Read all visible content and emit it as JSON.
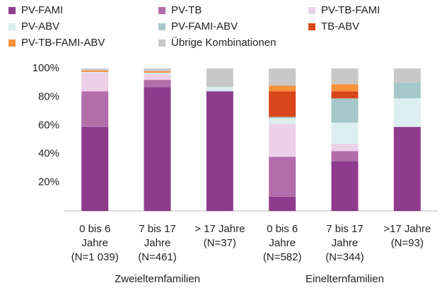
{
  "chart_data": {
    "type": "stacked_bar",
    "categories": [
      [
        "0 bis 6",
        "Jahre",
        "(N=1 039)"
      ],
      [
        "7 bis 17",
        "Jahre",
        "(N=461)"
      ],
      [
        "> 17 Jahre",
        "(N=37)"
      ],
      [
        "0 bis 6",
        "Jahre",
        "(N=582)"
      ],
      [
        "7 bis 17",
        "Jahre",
        "(N=344)"
      ],
      [
        ">17 Jahre",
        "(N=93)"
      ]
    ],
    "groups": [
      "Zweielternfamilien",
      "Einelternfamilien"
    ],
    "series": [
      {
        "name": "PV-FAMI",
        "color": "#8e3b8e",
        "values": [
          59,
          87,
          84,
          10,
          35,
          59
        ]
      },
      {
        "name": "PV-TB",
        "color": "#b26dab",
        "values": [
          25,
          5,
          0,
          28,
          7,
          0
        ]
      },
      {
        "name": "PV-TB-FAMI",
        "color": "#ecd0e8",
        "values": [
          13,
          4,
          0,
          23,
          5,
          0
        ]
      },
      {
        "name": "PV-ABV",
        "color": "#dbeef0",
        "values": [
          0.5,
          1,
          3,
          4,
          15,
          20
        ]
      },
      {
        "name": "PV-FAMI-ABV",
        "color": "#a6c8cb",
        "values": [
          0,
          0,
          0,
          1,
          17,
          11
        ]
      },
      {
        "name": "TB-ABV",
        "color": "#d9461b",
        "values": [
          0,
          0,
          0,
          18,
          5,
          0
        ]
      },
      {
        "name": "PV-TB-FAMI-ABV",
        "color": "#f7913a",
        "values": [
          1,
          1,
          0,
          4,
          5,
          0
        ]
      },
      {
        "name": "Übrige Kombinationen",
        "color": "#c8c8c8",
        "values": [
          1.5,
          2,
          13,
          12,
          11,
          10
        ]
      }
    ],
    "ylim": [
      0,
      100
    ],
    "yticks": [
      {
        "value": 20,
        "label": "20%"
      },
      {
        "value": 40,
        "label": "40%"
      },
      {
        "value": 60,
        "label": "60%"
      },
      {
        "value": 80,
        "label": "80%"
      },
      {
        "value": 100,
        "label": "100%"
      }
    ]
  }
}
